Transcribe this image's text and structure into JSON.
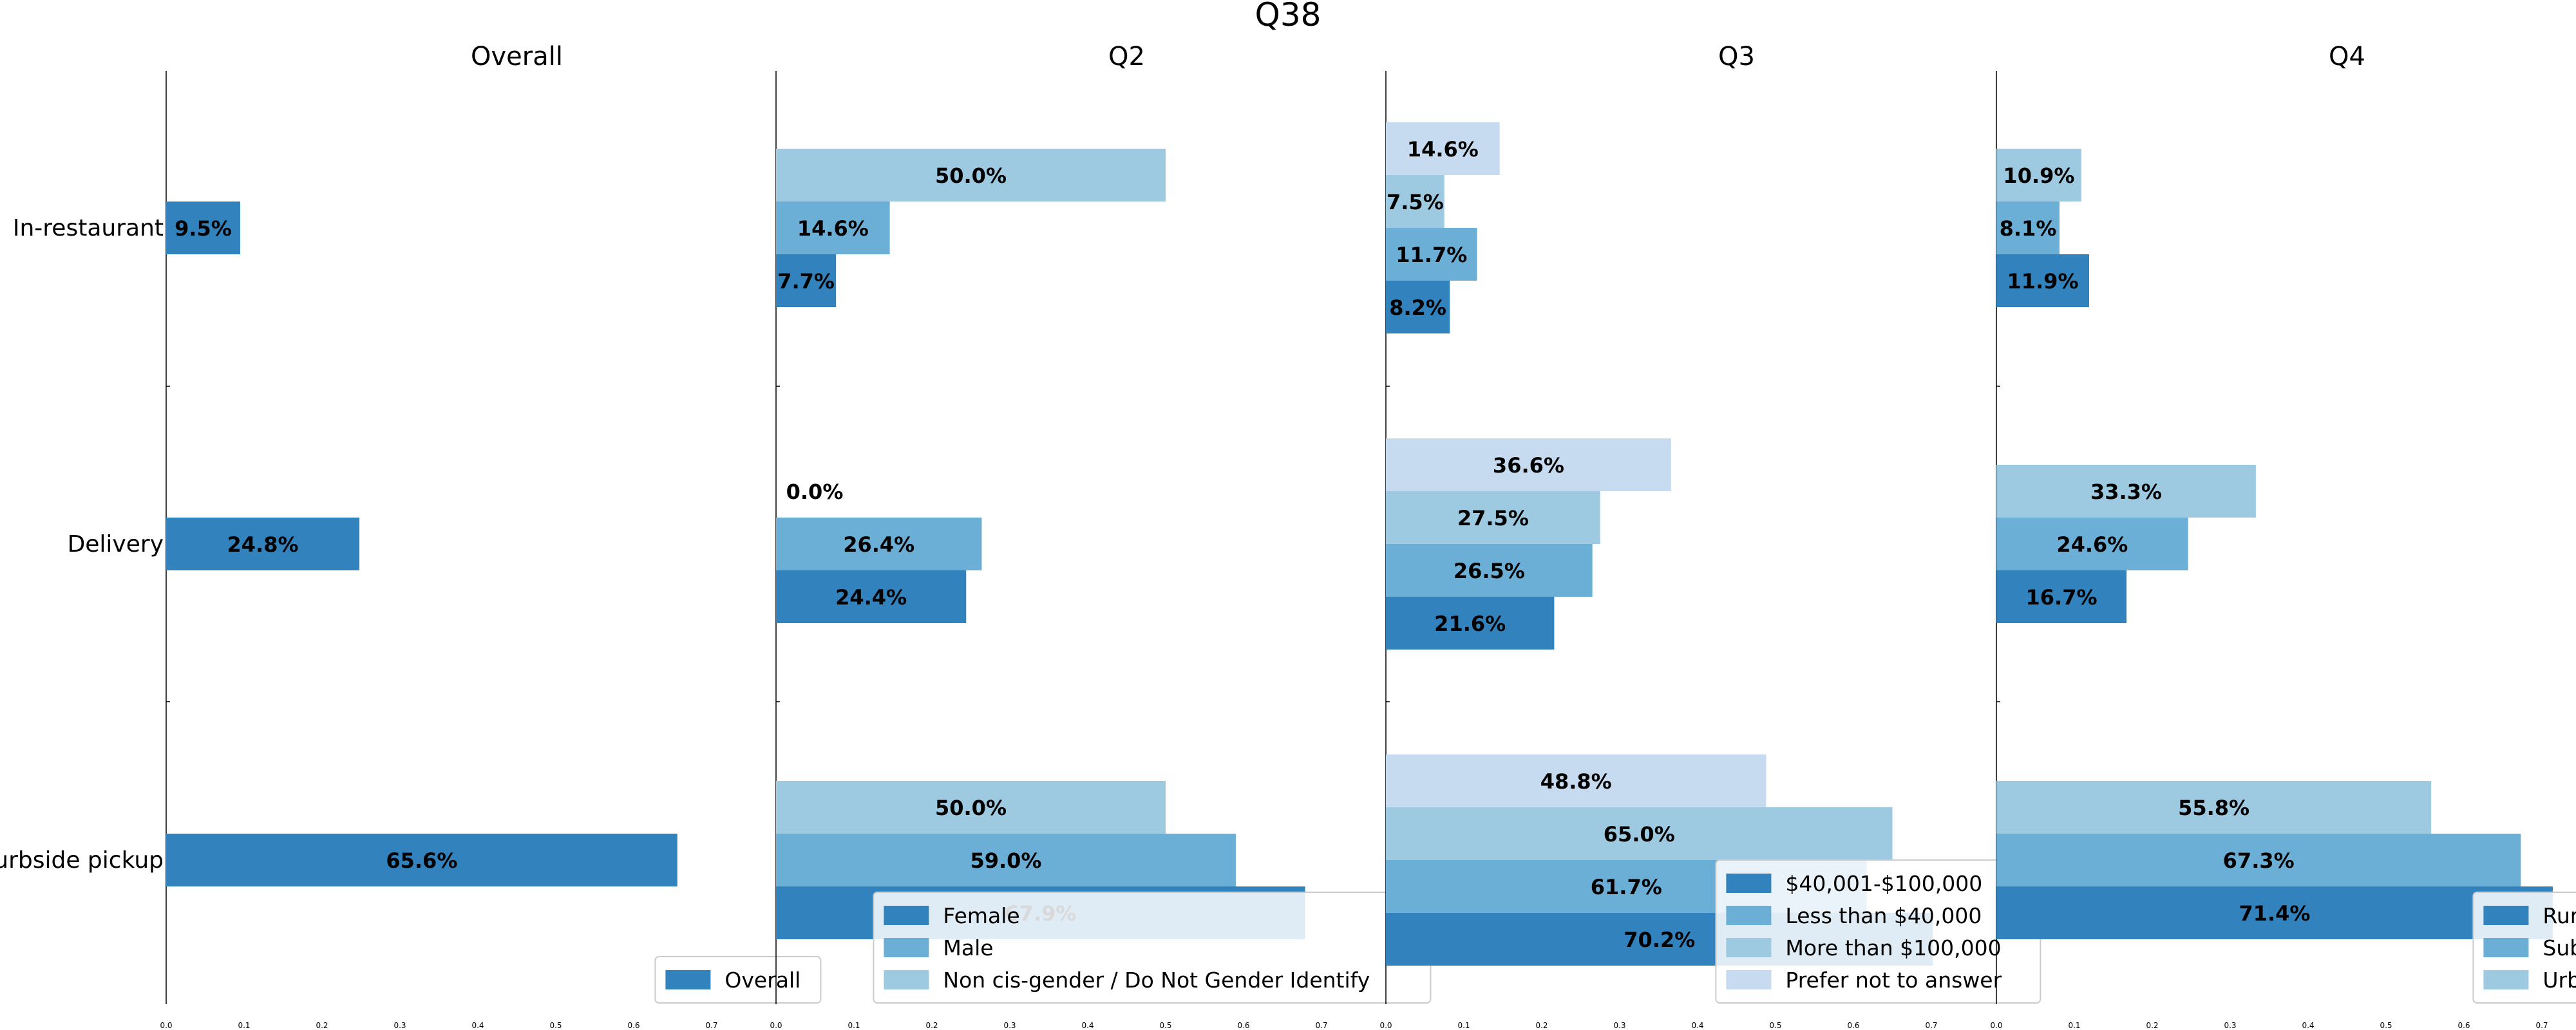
{
  "chart_data": {
    "type": "bar",
    "orientation": "horizontal",
    "title": "Q38",
    "categories": [
      "In-restaurant",
      "Delivery",
      "Curbside pickup"
    ],
    "xlim": [
      0,
      0.75
    ],
    "xticks": [
      "0.0",
      "0.1",
      "0.2",
      "0.3",
      "0.4",
      "0.5",
      "0.6",
      "0.7"
    ],
    "panels": [
      {
        "title": "Overall",
        "legend_position": "bottom-right",
        "series": [
          {
            "name": "Overall",
            "color": "#3182bd",
            "values": [
              0.095,
              0.248,
              0.656
            ],
            "labels": [
              "9.5%",
              "24.8%",
              "65.6%"
            ]
          }
        ]
      },
      {
        "title": "Q2",
        "legend_position": "bottom-right",
        "series": [
          {
            "name": "Female",
            "color": "#3182bd",
            "values": [
              0.077,
              0.244,
              0.679
            ],
            "labels": [
              "7.7%",
              "24.4%",
              "67.9%"
            ]
          },
          {
            "name": "Male",
            "color": "#6baed6",
            "values": [
              0.146,
              0.264,
              0.59
            ],
            "labels": [
              "14.6%",
              "26.4%",
              "59.0%"
            ]
          },
          {
            "name": "Non cis-gender / Do Not Gender Identify",
            "color": "#9ecae1",
            "values": [
              0.5,
              0.0,
              0.5
            ],
            "labels": [
              "50.0%",
              "0.0%",
              "50.0%"
            ]
          }
        ]
      },
      {
        "title": "Q3",
        "legend_position": "bottom-right",
        "series": [
          {
            "name": "$40,001-$100,000",
            "color": "#3182bd",
            "values": [
              0.082,
              0.216,
              0.702
            ],
            "labels": [
              "8.2%",
              "21.6%",
              "70.2%"
            ]
          },
          {
            "name": "Less than $40,000",
            "color": "#6baed6",
            "values": [
              0.117,
              0.265,
              0.617
            ],
            "labels": [
              "11.7%",
              "26.5%",
              "61.7%"
            ]
          },
          {
            "name": "More than $100,000",
            "color": "#9ecae1",
            "values": [
              0.075,
              0.275,
              0.65
            ],
            "labels": [
              "7.5%",
              "27.5%",
              "65.0%"
            ]
          },
          {
            "name": "Prefer not to answer",
            "color": "#c6dbef",
            "values": [
              0.146,
              0.366,
              0.488
            ],
            "labels": [
              "14.6%",
              "36.6%",
              "48.8%"
            ]
          }
        ]
      },
      {
        "title": "Q4",
        "legend_position": "bottom-right",
        "series": [
          {
            "name": "Rural",
            "color": "#3182bd",
            "values": [
              0.119,
              0.167,
              0.714
            ],
            "labels": [
              "11.9%",
              "16.7%",
              "71.4%"
            ]
          },
          {
            "name": "Suburban",
            "color": "#6baed6",
            "values": [
              0.081,
              0.246,
              0.673
            ],
            "labels": [
              "8.1%",
              "24.6%",
              "67.3%"
            ]
          },
          {
            "name": "Urban",
            "color": "#9ecae1",
            "values": [
              0.109,
              0.333,
              0.558
            ],
            "labels": [
              "10.9%",
              "33.3%",
              "55.8%"
            ]
          }
        ]
      }
    ]
  }
}
